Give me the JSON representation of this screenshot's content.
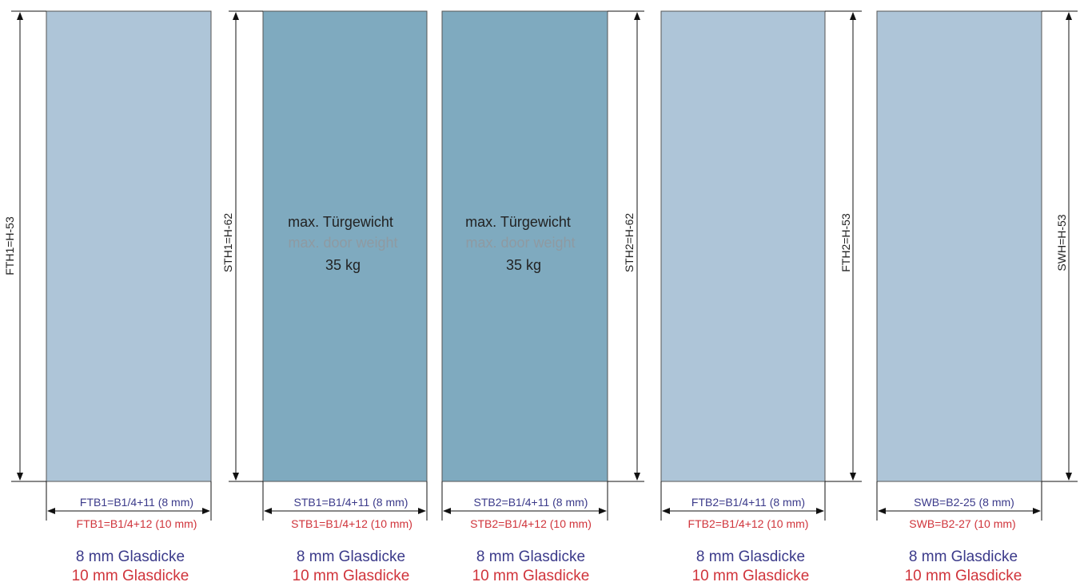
{
  "colors": {
    "panel_light": "#aec5d8",
    "panel_dark": "#7faabf",
    "text_8mm": "#3b3a8a",
    "text_10mm": "#d0343b",
    "line": "#111111"
  },
  "panels": [
    {
      "type": "fixed",
      "height_label": "FTH1=H-53",
      "width_8mm": "FTB1=B1/4+11 (8 mm)",
      "width_10mm": "FTB1=B1/4+12 (10 mm)",
      "glass_8mm": "8 mm Glasdicke",
      "glass_10mm": "10 mm Glasdicke"
    },
    {
      "type": "sliding",
      "height_label": "STH1=H-62",
      "width_8mm": "STB1=B1/4+11 (8 mm)",
      "width_10mm": "STB1=B1/4+12 (10 mm)",
      "glass_8mm": "8 mm Glasdicke",
      "glass_10mm": "10 mm Glasdicke",
      "weight_de": "max. Türgewicht",
      "weight_en": "max. door weight",
      "weight_value": "35 kg"
    },
    {
      "type": "sliding",
      "height_label": "STH2=H-62",
      "width_8mm": "STB2=B1/4+11 (8 mm)",
      "width_10mm": "STB2=B1/4+12 (10 mm)",
      "glass_8mm": "8 mm Glasdicke",
      "glass_10mm": "10 mm Glasdicke",
      "weight_de": "max. Türgewicht",
      "weight_en": "max. door weight",
      "weight_value": "35 kg"
    },
    {
      "type": "fixed",
      "height_label": "FTH2=H-53",
      "width_8mm": "FTB2=B1/4+11 (8 mm)",
      "width_10mm": "FTB2=B1/4+12 (10 mm)",
      "glass_8mm": "8 mm Glasdicke",
      "glass_10mm": "10 mm Glasdicke"
    },
    {
      "type": "side",
      "height_label": "SWH=H-53",
      "width_8mm": "SWB=B2-25 (8 mm)",
      "width_10mm": "SWB=B2-27 (10 mm)",
      "glass_8mm": "8 mm Glasdicke",
      "glass_10mm": "10 mm Glasdicke"
    }
  ]
}
